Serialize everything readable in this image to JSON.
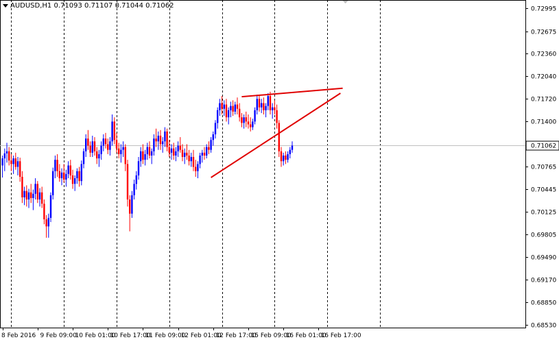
{
  "header": {
    "symbol": "AUDUSD,H1",
    "open": "0.71093",
    "high": "0.71107",
    "low": "0.71044",
    "close": "0.71062"
  },
  "colors": {
    "background": "#ffffff",
    "grid": "#000000",
    "bull": "#0000ff",
    "bear": "#ff0000",
    "trendline": "#e00000",
    "current_price_line": "#c0c0c0",
    "price_tag_bg": "#ffffff"
  },
  "chart_data": {
    "type": "candlestick",
    "symbol": "AUDUSD",
    "timeframe": "H1",
    "ylim": [
      0.6853,
      0.7299
    ],
    "y_ticks": [
      "0.72995",
      "0.72675",
      "0.72360",
      "0.72040",
      "0.71720",
      "0.71400",
      "0.71062",
      "0.70765",
      "0.70445",
      "0.70125",
      "0.69805",
      "0.69490",
      "0.69170",
      "0.68850",
      "0.68530"
    ],
    "current_price": "0.71062",
    "x_ticks": [
      {
        "label": "8 Feb 2016",
        "bar": 0
      },
      {
        "label": "9 Feb 09:00",
        "bar": 16
      },
      {
        "label": "10 Feb 01:00",
        "bar": 32
      },
      {
        "label": "10 Feb 17:00",
        "bar": 48
      },
      {
        "label": "11 Feb 09:00",
        "bar": 64
      },
      {
        "label": "12 Feb 01:00",
        "bar": 80
      },
      {
        "label": "12 Feb 17:00",
        "bar": 96
      },
      {
        "label": "15 Feb 09:00",
        "bar": 112
      },
      {
        "label": "16 Feb 01:00",
        "bar": 128
      },
      {
        "label": "16 Feb 17:00",
        "bar": 144
      }
    ],
    "period_separators": [
      4,
      28,
      52,
      76,
      100,
      124,
      148,
      172
    ],
    "trendlines": [
      {
        "from": {
          "bar": 109,
          "price": 0.7175
        },
        "to": {
          "bar": 155,
          "price": 0.7187
        }
      },
      {
        "from": {
          "bar": 95,
          "price": 0.7061
        },
        "to": {
          "bar": 154,
          "price": 0.718
        }
      }
    ],
    "candles": [
      [
        0.7078,
        0.7092,
        0.7061,
        0.7088
      ],
      [
        0.7088,
        0.7102,
        0.707,
        0.7095
      ],
      [
        0.7095,
        0.711,
        0.7082,
        0.7098
      ],
      [
        0.7098,
        0.7104,
        0.7078,
        0.7085
      ],
      [
        0.7085,
        0.7094,
        0.707,
        0.708
      ],
      [
        0.708,
        0.7092,
        0.7066,
        0.7088
      ],
      [
        0.7088,
        0.7096,
        0.7072,
        0.7076
      ],
      [
        0.7076,
        0.709,
        0.7064,
        0.7084
      ],
      [
        0.7084,
        0.7089,
        0.7055,
        0.7062
      ],
      [
        0.7062,
        0.707,
        0.7025,
        0.7033
      ],
      [
        0.7033,
        0.7048,
        0.7022,
        0.7042
      ],
      [
        0.7042,
        0.705,
        0.702,
        0.703
      ],
      [
        0.703,
        0.7045,
        0.7018,
        0.704
      ],
      [
        0.704,
        0.7052,
        0.7025,
        0.7032
      ],
      [
        0.7032,
        0.7044,
        0.7015,
        0.7038
      ],
      [
        0.7038,
        0.706,
        0.703,
        0.7052
      ],
      [
        0.7052,
        0.7056,
        0.7025,
        0.703
      ],
      [
        0.703,
        0.7046,
        0.702,
        0.704
      ],
      [
        0.704,
        0.7048,
        0.7018,
        0.7024
      ],
      [
        0.7024,
        0.703,
        0.6995,
        0.7002
      ],
      [
        0.7002,
        0.7008,
        0.6976,
        0.6992
      ],
      [
        0.6992,
        0.701,
        0.6976,
        0.7004
      ],
      [
        0.7004,
        0.704,
        0.6998,
        0.7036
      ],
      [
        0.7036,
        0.7075,
        0.703,
        0.707
      ],
      [
        0.707,
        0.7092,
        0.706,
        0.7086
      ],
      [
        0.7086,
        0.7094,
        0.7062,
        0.707
      ],
      [
        0.707,
        0.708,
        0.7055,
        0.706
      ],
      [
        0.706,
        0.7074,
        0.705,
        0.7068
      ],
      [
        0.7068,
        0.708,
        0.7054,
        0.7058
      ],
      [
        0.7058,
        0.7072,
        0.7048,
        0.7066
      ],
      [
        0.7066,
        0.7084,
        0.706,
        0.7078
      ],
      [
        0.7078,
        0.7086,
        0.7058,
        0.7064
      ],
      [
        0.7064,
        0.7072,
        0.7045,
        0.7052
      ],
      [
        0.7052,
        0.7064,
        0.7042,
        0.706
      ],
      [
        0.706,
        0.7074,
        0.7052,
        0.707
      ],
      [
        0.707,
        0.7076,
        0.7048,
        0.7056
      ],
      [
        0.7056,
        0.7085,
        0.705,
        0.708
      ],
      [
        0.708,
        0.7102,
        0.7074,
        0.7098
      ],
      [
        0.7098,
        0.7122,
        0.709,
        0.7116
      ],
      [
        0.7116,
        0.7128,
        0.71,
        0.7106
      ],
      [
        0.7106,
        0.7112,
        0.709,
        0.7096
      ],
      [
        0.7096,
        0.712,
        0.709,
        0.7112
      ],
      [
        0.7112,
        0.7118,
        0.7092,
        0.7098
      ],
      [
        0.7098,
        0.7104,
        0.708,
        0.7088
      ],
      [
        0.7088,
        0.71,
        0.7076,
        0.7094
      ],
      [
        0.7094,
        0.7112,
        0.7086,
        0.7106
      ],
      [
        0.7106,
        0.7122,
        0.7098,
        0.7116
      ],
      [
        0.7116,
        0.7124,
        0.7102,
        0.7108
      ],
      [
        0.7108,
        0.7116,
        0.7094,
        0.71
      ],
      [
        0.71,
        0.7118,
        0.7092,
        0.7112
      ],
      [
        0.7112,
        0.715,
        0.7106,
        0.714
      ],
      [
        0.714,
        0.7146,
        0.7108,
        0.7114
      ],
      [
        0.7114,
        0.7124,
        0.7096,
        0.7102
      ],
      [
        0.7102,
        0.711,
        0.7088,
        0.7094
      ],
      [
        0.7094,
        0.7108,
        0.7082,
        0.71
      ],
      [
        0.71,
        0.7112,
        0.709,
        0.7104
      ],
      [
        0.7104,
        0.7108,
        0.707,
        0.708
      ],
      [
        0.708,
        0.7086,
        0.702,
        0.703
      ],
      [
        0.703,
        0.7036,
        0.6985,
        0.701
      ],
      [
        0.701,
        0.7042,
        0.7004,
        0.7036
      ],
      [
        0.7036,
        0.7058,
        0.703,
        0.7052
      ],
      [
        0.7052,
        0.707,
        0.7044,
        0.7064
      ],
      [
        0.7064,
        0.709,
        0.7058,
        0.7084
      ],
      [
        0.7084,
        0.7104,
        0.7076,
        0.7098
      ],
      [
        0.7098,
        0.7108,
        0.708,
        0.7086
      ],
      [
        0.7086,
        0.71,
        0.7078,
        0.7094
      ],
      [
        0.7094,
        0.711,
        0.7086,
        0.7104
      ],
      [
        0.7104,
        0.7112,
        0.7088,
        0.7092
      ],
      [
        0.7092,
        0.7102,
        0.708,
        0.7098
      ],
      [
        0.7098,
        0.7122,
        0.7092,
        0.7116
      ],
      [
        0.7116,
        0.713,
        0.7104,
        0.7112
      ],
      [
        0.7112,
        0.7126,
        0.71,
        0.712
      ],
      [
        0.712,
        0.7128,
        0.71,
        0.7108
      ],
      [
        0.7108,
        0.7118,
        0.7096,
        0.7112
      ],
      [
        0.7112,
        0.7132,
        0.7104,
        0.7126
      ],
      [
        0.7126,
        0.713,
        0.7098,
        0.7104
      ],
      [
        0.7104,
        0.7114,
        0.709,
        0.7096
      ],
      [
        0.7096,
        0.7108,
        0.7086,
        0.7102
      ],
      [
        0.7102,
        0.711,
        0.7086,
        0.7092
      ],
      [
        0.7092,
        0.7104,
        0.7084,
        0.7098
      ],
      [
        0.7098,
        0.7112,
        0.709,
        0.7106
      ],
      [
        0.7106,
        0.7118,
        0.7096,
        0.71
      ],
      [
        0.71,
        0.7108,
        0.7084,
        0.709
      ],
      [
        0.709,
        0.7102,
        0.708,
        0.7096
      ],
      [
        0.7096,
        0.7108,
        0.7086,
        0.7092
      ],
      [
        0.7092,
        0.71,
        0.7078,
        0.7084
      ],
      [
        0.7084,
        0.7096,
        0.7076,
        0.709
      ],
      [
        0.709,
        0.71,
        0.707,
        0.7076
      ],
      [
        0.7076,
        0.7086,
        0.7062,
        0.707
      ],
      [
        0.707,
        0.7084,
        0.706,
        0.708
      ],
      [
        0.708,
        0.7096,
        0.7074,
        0.7092
      ],
      [
        0.7092,
        0.71,
        0.7082,
        0.7096
      ],
      [
        0.7096,
        0.7104,
        0.7086,
        0.7092
      ],
      [
        0.7092,
        0.7108,
        0.7088,
        0.7104
      ],
      [
        0.7104,
        0.7112,
        0.7094,
        0.71
      ],
      [
        0.71,
        0.7118,
        0.7096,
        0.7114
      ],
      [
        0.7114,
        0.7126,
        0.7106,
        0.7122
      ],
      [
        0.7122,
        0.7142,
        0.7116,
        0.7138
      ],
      [
        0.7138,
        0.716,
        0.713,
        0.7156
      ],
      [
        0.7156,
        0.7172,
        0.7148,
        0.7166
      ],
      [
        0.7166,
        0.7176,
        0.715,
        0.7158
      ],
      [
        0.7158,
        0.717,
        0.7148,
        0.7164
      ],
      [
        0.7164,
        0.7172,
        0.714,
        0.7146
      ],
      [
        0.7146,
        0.716,
        0.7136,
        0.7156
      ],
      [
        0.7156,
        0.7168,
        0.7146,
        0.7162
      ],
      [
        0.7162,
        0.717,
        0.7148,
        0.7154
      ],
      [
        0.7154,
        0.7168,
        0.715,
        0.7164
      ],
      [
        0.7164,
        0.7174,
        0.715,
        0.7158
      ],
      [
        0.7158,
        0.7166,
        0.714,
        0.7146
      ],
      [
        0.7146,
        0.7152,
        0.7132,
        0.7138
      ],
      [
        0.7138,
        0.715,
        0.713,
        0.7146
      ],
      [
        0.7146,
        0.7154,
        0.7132,
        0.714
      ],
      [
        0.714,
        0.715,
        0.713,
        0.7136
      ],
      [
        0.7136,
        0.7146,
        0.7126,
        0.7132
      ],
      [
        0.7132,
        0.7144,
        0.7128,
        0.714
      ],
      [
        0.714,
        0.716,
        0.7136,
        0.7156
      ],
      [
        0.7156,
        0.7178,
        0.715,
        0.7172
      ],
      [
        0.7172,
        0.7178,
        0.7154,
        0.716
      ],
      [
        0.716,
        0.7172,
        0.7152,
        0.7166
      ],
      [
        0.7166,
        0.7174,
        0.715,
        0.7156
      ],
      [
        0.7156,
        0.7166,
        0.7146,
        0.7162
      ],
      [
        0.7162,
        0.718,
        0.7156,
        0.7176
      ],
      [
        0.7176,
        0.7182,
        0.715,
        0.7156
      ],
      [
        0.7156,
        0.7166,
        0.7144,
        0.716
      ],
      [
        0.716,
        0.717,
        0.715,
        0.7156
      ],
      [
        0.7156,
        0.7164,
        0.713,
        0.7138
      ],
      [
        0.7138,
        0.7142,
        0.709,
        0.7098
      ],
      [
        0.7098,
        0.7104,
        0.7076,
        0.7084
      ],
      [
        0.7084,
        0.7096,
        0.7078,
        0.7092
      ],
      [
        0.7092,
        0.7098,
        0.708,
        0.7086
      ],
      [
        0.7086,
        0.7098,
        0.7082,
        0.7094
      ],
      [
        0.7094,
        0.7104,
        0.7088,
        0.71
      ],
      [
        0.71,
        0.7112,
        0.7096,
        0.7106
      ]
    ]
  }
}
